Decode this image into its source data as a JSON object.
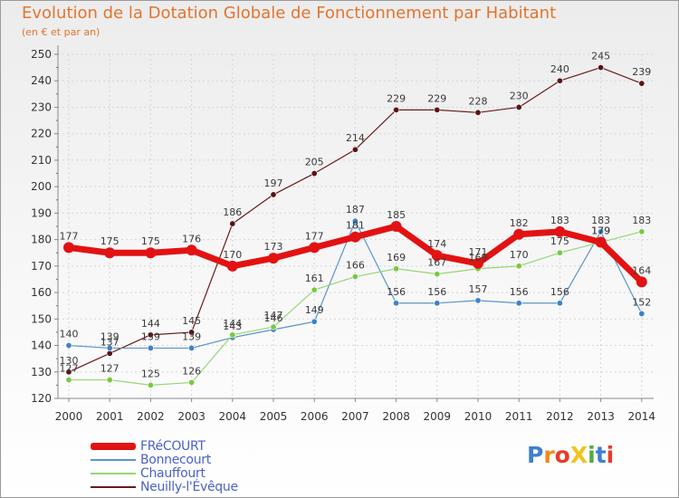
{
  "title": "Evolution de la Dotation Globale de Fonctionnement par Habitant",
  "subtitle": "(en € et par an)",
  "logo": {
    "text": "ProXiti",
    "letters": [
      "P",
      "r",
      "o",
      "X",
      "i",
      "t",
      "i"
    ],
    "colors": [
      "#3d7fd0",
      "#f08a1c",
      "#e93b2a",
      "#f2c320",
      "#4fae3b",
      "#3d7fd0",
      "#e93b2a"
    ]
  },
  "chart_data": {
    "type": "line",
    "title": "Evolution de la Dotation Globale de Fonctionnement par Habitant",
    "subtitle": "(en € et par an)",
    "xlabel": "",
    "ylabel": "",
    "x": [
      "2000",
      "2001",
      "2002",
      "2003",
      "2004",
      "2005",
      "2006",
      "2007",
      "2008",
      "2009",
      "2010",
      "2011",
      "2012",
      "2013",
      "2014"
    ],
    "yticks": [
      "120",
      "130",
      "140",
      "150",
      "160",
      "170",
      "180",
      "190",
      "200",
      "210",
      "220",
      "230",
      "240",
      "250"
    ],
    "ylim": [
      120,
      250
    ],
    "grid": true,
    "legend_position": "bottom-left",
    "series": [
      {
        "name": "Neuilly-l'Évêque",
        "color": "#6b1a1a",
        "marker": "#5a1414",
        "width": 1.2,
        "dot": 3.2,
        "values": [
          130,
          137,
          144,
          145,
          186,
          197,
          205,
          214,
          229,
          229,
          228,
          230,
          240,
          245,
          239
        ]
      },
      {
        "name": "Bonnecourt",
        "color": "#5b94c8",
        "marker": "#3f82c8",
        "width": 1.2,
        "dot": 3.2,
        "values": [
          140,
          139,
          139,
          139,
          143,
          146,
          149,
          187,
          156,
          156,
          157,
          156,
          156,
          183,
          152
        ]
      },
      {
        "name": "Chauffourt",
        "color": "#96d674",
        "marker": "#7ac843",
        "width": 1.2,
        "dot": 3.2,
        "values": [
          127,
          127,
          125,
          126,
          144,
          147,
          161,
          166,
          169,
          167,
          169,
          170,
          175,
          179,
          183
        ]
      },
      {
        "name": "FRéCOURT",
        "color": "#e31212",
        "marker": "#e31212",
        "width": 7,
        "dot": 6,
        "values": [
          177,
          175,
          175,
          176,
          170,
          173,
          177,
          181,
          185,
          174,
          171,
          182,
          183,
          179,
          164
        ]
      }
    ],
    "legend": [
      "FRéCOURT",
      "Bonnecourt",
      "Chauffourt",
      "Neuilly-l'Évêque"
    ],
    "data_labels": [
      {
        "series": "Neuilly-l'Évêque",
        "labels": [
          "130",
          "137",
          "144",
          "145",
          "186",
          "197",
          "205",
          "214",
          "229",
          "229",
          "228",
          "230",
          "240",
          "245",
          "239"
        ]
      },
      {
        "series": "Bonnecourt",
        "labels": [
          "140",
          "139",
          "139",
          "139",
          "143",
          "146",
          "149",
          "187",
          "156",
          "156",
          "157",
          "156",
          "156",
          "183",
          "152"
        ]
      },
      {
        "series": "Chauffourt",
        "labels": [
          "127",
          "127",
          "125",
          "126",
          "144",
          "147",
          "161",
          "166",
          "169",
          "167",
          "169",
          "170",
          "175",
          "179",
          "183"
        ]
      },
      {
        "series": "FRéCOURT",
        "labels": [
          "177",
          "175",
          "175",
          "176",
          "170",
          "173",
          "177",
          "181",
          "185",
          "174",
          "171",
          "182",
          "183",
          "179",
          "164"
        ]
      }
    ]
  }
}
